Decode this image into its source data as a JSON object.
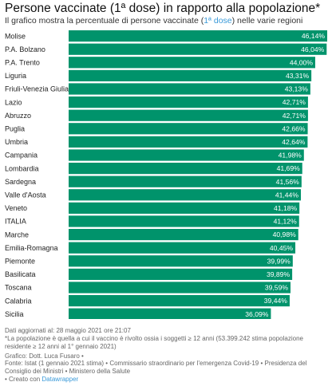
{
  "chart_data": {
    "type": "bar",
    "orientation": "horizontal",
    "title": "Persone vaccinate (1ª dose) in rapporto alla popolazione*",
    "subtitle_pre": "Il grafico mostra la percentuale di persone vaccinate (",
    "subtitle_hl": "1ª dose",
    "subtitle_post": ") nelle varie regioni",
    "categories": [
      "Molise",
      "P.A. Bolzano",
      "P.A. Trento",
      "Liguria",
      "Friuli-Venezia Giulia",
      "Lazio",
      "Abruzzo",
      "Puglia",
      "Umbria",
      "Campania",
      "Lombardia",
      "Sardegna",
      "Valle d'Aosta",
      "Veneto",
      "ITALIA",
      "Marche",
      "Emilia-Romagna",
      "Piemonte",
      "Basilicata",
      "Toscana",
      "Calabria",
      "Sicilia"
    ],
    "values": [
      46.14,
      46.04,
      44.0,
      43.31,
      43.13,
      42.71,
      42.71,
      42.66,
      42.64,
      41.98,
      41.69,
      41.56,
      41.44,
      41.18,
      41.12,
      40.98,
      40.45,
      39.99,
      39.89,
      39.59,
      39.44,
      36.09
    ],
    "value_labels": [
      "46,14%",
      "46,04%",
      "44,00%",
      "43,31%",
      "43,13%",
      "42,71%",
      "42,71%",
      "42,66%",
      "42,64%",
      "41,98%",
      "41,69%",
      "41,56%",
      "41,44%",
      "41,18%",
      "41,12%",
      "40,98%",
      "40,45%",
      "39,99%",
      "39,89%",
      "39,59%",
      "39,44%",
      "36,09%"
    ],
    "xlim": [
      0,
      46.14
    ],
    "bar_color": "#00936b",
    "highlight_color": "#3a9ad9",
    "grid": false
  },
  "footer": {
    "updated": "Dati aggiornati al: 28 maggio 2021 ore 21:07",
    "note": "*La popolazione è quella a cui il vaccino è rivolto ossia i soggetti ≥ 12 anni (53.399.242 stima popolazione residente ≥ 12 anni al 1° gennaio 2021)",
    "graphic": "Grafico: Dott. Luca Fusaro •",
    "source": "Fonte: Istat (1 gennaio 2021 stima) • Commissario straordinario per l'emergenza Covid-19 • Presidenza del Consiglio dei Ministri • Ministero della Salute",
    "created_pre": "• Creato con",
    "created_link": "Datawrapper"
  }
}
